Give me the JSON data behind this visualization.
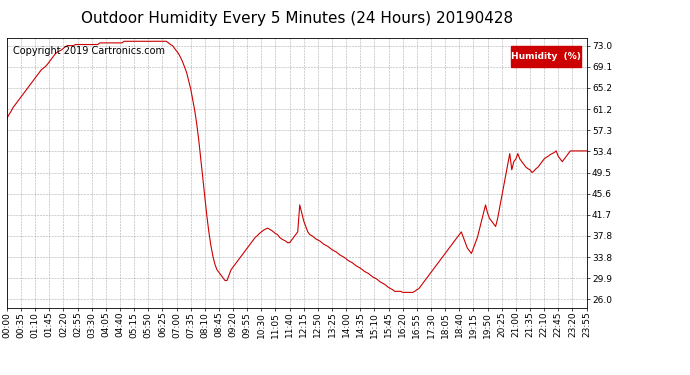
{
  "title": "Outdoor Humidity Every 5 Minutes (24 Hours) 20190428",
  "copyright_text": "Copyright 2019 Cartronics.com",
  "legend_label": "Humidity  (%)",
  "legend_bg": "#cc0000",
  "legend_text_color": "#ffffff",
  "line_color": "#cc0000",
  "background_color": "#ffffff",
  "grid_color": "#999999",
  "yticks": [
    26.0,
    29.9,
    33.8,
    37.8,
    41.7,
    45.6,
    49.5,
    53.4,
    57.3,
    61.2,
    65.2,
    69.1,
    73.0
  ],
  "ylim": [
    24.5,
    74.5
  ],
  "title_fontsize": 11,
  "tick_fontsize": 6.5,
  "copyright_fontsize": 7,
  "xtick_interval_minutes": 35,
  "humidity_data": [
    59.5,
    60.2,
    60.8,
    61.5,
    62.0,
    62.5,
    63.0,
    63.5,
    64.0,
    64.5,
    65.0,
    65.5,
    66.0,
    66.5,
    67.0,
    67.5,
    68.0,
    68.5,
    68.8,
    69.1,
    69.5,
    70.0,
    70.5,
    71.0,
    71.5,
    71.8,
    72.0,
    72.2,
    72.5,
    72.8,
    73.0,
    73.0,
    73.0,
    73.0,
    73.2,
    73.2,
    73.2,
    73.2,
    73.2,
    73.2,
    73.2,
    73.2,
    73.2,
    73.2,
    73.2,
    73.2,
    73.5,
    73.5,
    73.5,
    73.5,
    73.5,
    73.5,
    73.5,
    73.5,
    73.5,
    73.5,
    73.5,
    73.5,
    73.8,
    73.8,
    73.8,
    73.8,
    73.8,
    73.8,
    73.8,
    73.8,
    73.8,
    73.8,
    73.8,
    73.8,
    73.8,
    73.8,
    73.8,
    73.8,
    73.8,
    73.8,
    73.8,
    73.8,
    73.8,
    73.8,
    73.5,
    73.2,
    73.0,
    72.5,
    72.0,
    71.5,
    70.8,
    70.0,
    69.0,
    68.0,
    66.5,
    65.0,
    63.0,
    61.0,
    58.5,
    55.5,
    52.0,
    48.5,
    45.0,
    41.5,
    38.5,
    36.0,
    34.0,
    32.5,
    31.5,
    31.0,
    30.5,
    30.0,
    29.5,
    29.5,
    30.5,
    31.5,
    32.0,
    32.5,
    33.0,
    33.5,
    34.0,
    34.5,
    35.0,
    35.5,
    36.0,
    36.5,
    37.0,
    37.5,
    37.8,
    38.2,
    38.5,
    38.8,
    39.0,
    39.2,
    39.0,
    38.8,
    38.5,
    38.2,
    38.0,
    37.5,
    37.2,
    37.0,
    36.8,
    36.5,
    36.5,
    37.0,
    37.5,
    38.0,
    38.5,
    43.5,
    42.0,
    40.5,
    39.5,
    38.5,
    38.0,
    37.8,
    37.5,
    37.2,
    37.0,
    36.8,
    36.5,
    36.2,
    36.0,
    35.8,
    35.5,
    35.2,
    35.0,
    34.8,
    34.5,
    34.2,
    34.0,
    33.8,
    33.5,
    33.2,
    33.0,
    32.8,
    32.5,
    32.2,
    32.0,
    31.8,
    31.5,
    31.2,
    31.0,
    30.8,
    30.5,
    30.2,
    30.0,
    29.8,
    29.5,
    29.2,
    29.0,
    28.8,
    28.5,
    28.2,
    28.0,
    27.8,
    27.5,
    27.5,
    27.5,
    27.5,
    27.3,
    27.3,
    27.3,
    27.3,
    27.3,
    27.3,
    27.5,
    27.8,
    28.0,
    28.5,
    29.0,
    29.5,
    30.0,
    30.5,
    31.0,
    31.5,
    32.0,
    32.5,
    33.0,
    33.5,
    34.0,
    34.5,
    35.0,
    35.5,
    36.0,
    36.5,
    37.0,
    37.5,
    38.0,
    38.5,
    37.5,
    36.5,
    35.5,
    35.0,
    34.5,
    35.5,
    36.5,
    37.5,
    39.0,
    40.5,
    42.0,
    43.5,
    42.0,
    41.0,
    40.5,
    40.0,
    39.5,
    41.0,
    43.0,
    45.0,
    47.0,
    49.0,
    51.0,
    53.0,
    50.0,
    51.5,
    52.0,
    53.0,
    52.0,
    51.5,
    51.0,
    50.5,
    50.2,
    50.0,
    49.5,
    49.8,
    50.2,
    50.5,
    51.0,
    51.5,
    52.0,
    52.3,
    52.5,
    52.8,
    53.0,
    53.2,
    53.5,
    52.5,
    52.0,
    51.5,
    52.0,
    52.5,
    53.0,
    53.5,
    53.5,
    53.5,
    53.5,
    53.5,
    53.5,
    53.5,
    53.5,
    53.5
  ]
}
